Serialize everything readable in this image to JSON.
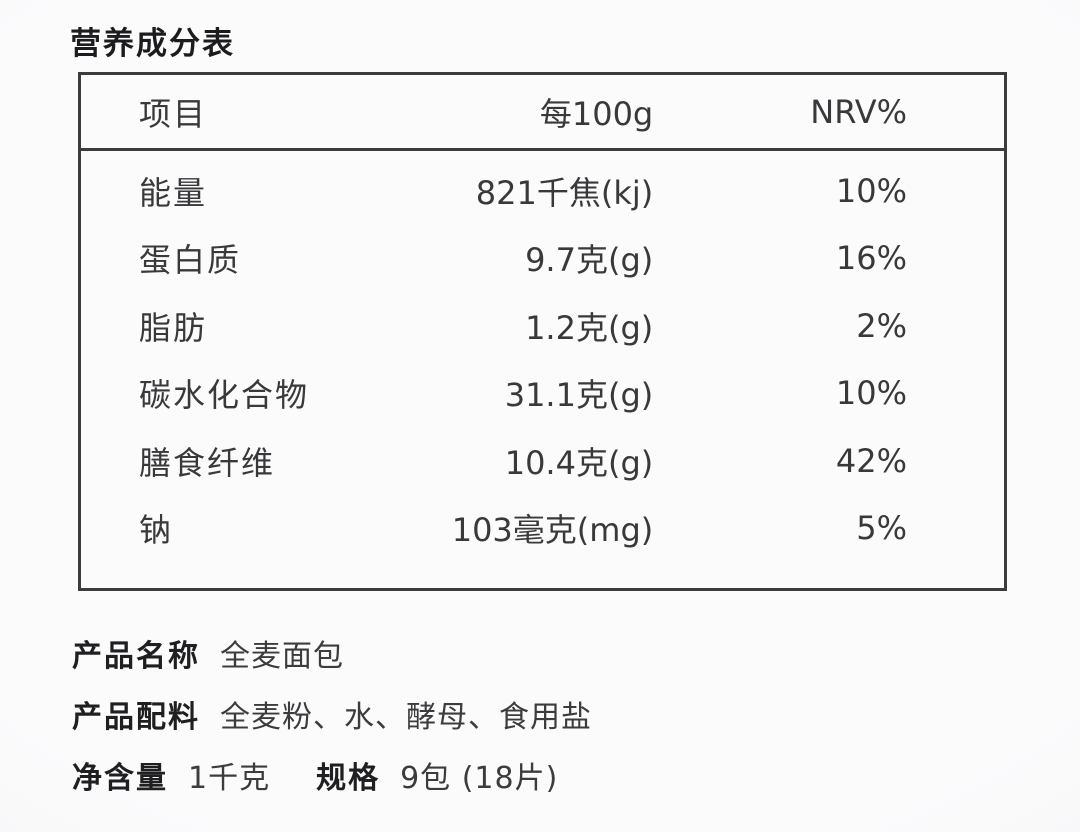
{
  "page": {
    "title": "营养成分表"
  },
  "nutrition_table": {
    "headers": {
      "item": "项目",
      "per_100g": "每100g",
      "nrv": "NRV%"
    },
    "rows": [
      {
        "item": "能量",
        "amount": "821千焦(kj)",
        "nrv": "10%"
      },
      {
        "item": "蛋白质",
        "amount": "9.7克(g)",
        "nrv": "16%"
      },
      {
        "item": "脂肪",
        "amount": "1.2克(g)",
        "nrv": "2%"
      },
      {
        "item": "碳水化合物",
        "amount": "31.1克(g)",
        "nrv": "10%"
      },
      {
        "item": "膳食纤维",
        "amount": "10.4克(g)",
        "nrv": "42%"
      },
      {
        "item": "钠",
        "amount": "103毫克(mg)",
        "nrv": "5%"
      }
    ]
  },
  "product_info": {
    "name_label": "产品名称",
    "name_value": "全麦面包",
    "ingredients_label": "产品配料",
    "ingredients_value": "全麦粉、水、酵母、食用盐",
    "net_content_label": "净含量",
    "net_content_value": "1千克",
    "spec_label": "规格",
    "spec_value": "9包 (18片)"
  }
}
